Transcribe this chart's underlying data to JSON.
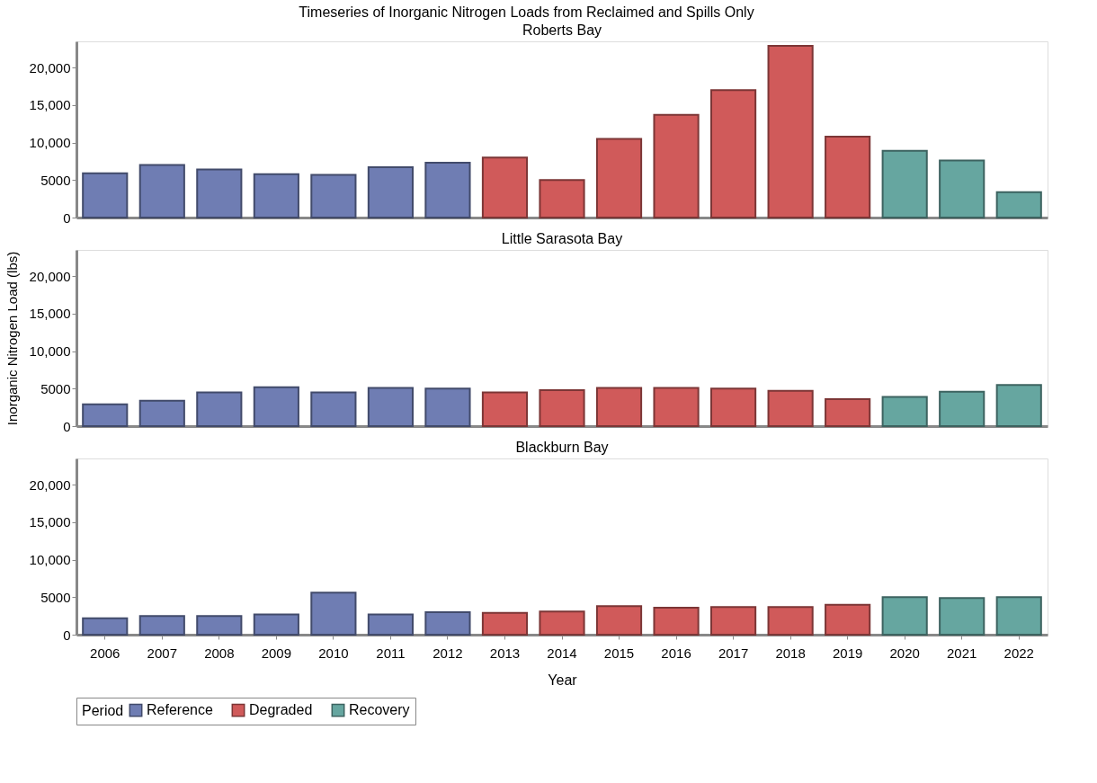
{
  "chart_data": [
    {
      "type": "bar",
      "title": "Timeseries of Inorganic Nitrogen Loads from Reclaimed and Spills Only",
      "subtitle": "Roberts Bay",
      "categories": [
        "2006",
        "2007",
        "2008",
        "2009",
        "2010",
        "2011",
        "2012",
        "2013",
        "2014",
        "2015",
        "2016",
        "2017",
        "2018",
        "2019",
        "2020",
        "2021",
        "2022"
      ],
      "series": [
        {
          "color": "#6f7db3",
          "values": [
            5900,
            7000,
            6400,
            5800,
            5700,
            6700,
            7300,
            null,
            null,
            null,
            null,
            null,
            null,
            null,
            null,
            null,
            null
          ]
        },
        {
          "color": "#d05a5a",
          "values": [
            null,
            null,
            null,
            null,
            null,
            null,
            null,
            8000,
            5000,
            10500,
            13700,
            17000,
            22900,
            10800,
            null,
            null,
            null
          ]
        },
        {
          "color": "#66a6a0",
          "values": [
            null,
            null,
            null,
            null,
            null,
            null,
            null,
            null,
            null,
            null,
            null,
            null,
            null,
            null,
            8900,
            7600,
            3400
          ]
        }
      ],
      "ylim": [
        0,
        23500
      ],
      "yticks": [
        0,
        5000,
        {
          "value": 10000,
          "label": "10,000"
        },
        {
          "value": 15000,
          "label": "15,000"
        },
        {
          "value": 20000,
          "label": "20,000"
        }
      ],
      "tick_labels": "y",
      "grid": false,
      "legend": false
    },
    {
      "type": "bar",
      "title": "Little Sarasota Bay",
      "ylabel": "Inorganic Nitrogen Load (lbs)",
      "categories": [
        "2006",
        "2007",
        "2008",
        "2009",
        "2010",
        "2011",
        "2012",
        "2013",
        "2014",
        "2015",
        "2016",
        "2017",
        "2018",
        "2019",
        "2020",
        "2021",
        "2022"
      ],
      "series": [
        {
          "color": "#6f7db3",
          "values": [
            2900,
            3400,
            4500,
            5200,
            4500,
            5100,
            5000,
            null,
            null,
            null,
            null,
            null,
            null,
            null,
            null,
            null,
            null
          ]
        },
        {
          "color": "#d05a5a",
          "values": [
            null,
            null,
            null,
            null,
            null,
            null,
            null,
            4500,
            4800,
            5100,
            5100,
            5000,
            4700,
            3600,
            null,
            null,
            null
          ]
        },
        {
          "color": "#66a6a0",
          "values": [
            null,
            null,
            null,
            null,
            null,
            null,
            null,
            null,
            null,
            null,
            null,
            null,
            null,
            null,
            3900,
            4600,
            5500
          ]
        }
      ],
      "ylim": [
        0,
        23500
      ],
      "yticks": [
        0,
        5000,
        {
          "value": 10000,
          "label": "10,000"
        },
        {
          "value": 15000,
          "label": "15,000"
        },
        {
          "value": 20000,
          "label": "20,000"
        }
      ],
      "tick_labels": "y",
      "grid": false,
      "legend": false
    },
    {
      "type": "bar",
      "title": "Blackburn Bay",
      "xlabel": "Year",
      "legend_title": "Period",
      "categories": [
        "2006",
        "2007",
        "2008",
        "2009",
        "2010",
        "2011",
        "2012",
        "2013",
        "2014",
        "2015",
        "2016",
        "2017",
        "2018",
        "2019",
        "2020",
        "2021",
        "2022"
      ],
      "series": [
        {
          "name": "Reference",
          "color": "#6f7db3",
          "values": [
            2200,
            2500,
            2500,
            2700,
            5600,
            2700,
            3000,
            null,
            null,
            null,
            null,
            null,
            null,
            null,
            null,
            null,
            null
          ]
        },
        {
          "name": "Degraded",
          "color": "#d05a5a",
          "values": [
            null,
            null,
            null,
            null,
            null,
            null,
            null,
            2900,
            3100,
            3800,
            3600,
            3700,
            3700,
            4000,
            null,
            null,
            null
          ]
        },
        {
          "name": "Recovery",
          "color": "#66a6a0",
          "values": [
            null,
            null,
            null,
            null,
            null,
            null,
            null,
            null,
            null,
            null,
            null,
            null,
            null,
            null,
            5000,
            4900,
            5000
          ]
        }
      ],
      "ylim": [
        0,
        23500
      ],
      "yticks": [
        0,
        5000,
        {
          "value": 10000,
          "label": "10,000"
        },
        {
          "value": 15000,
          "label": "15,000"
        },
        {
          "value": 20000,
          "label": "20,000"
        }
      ],
      "grid": false,
      "legend": "bottom"
    }
  ]
}
